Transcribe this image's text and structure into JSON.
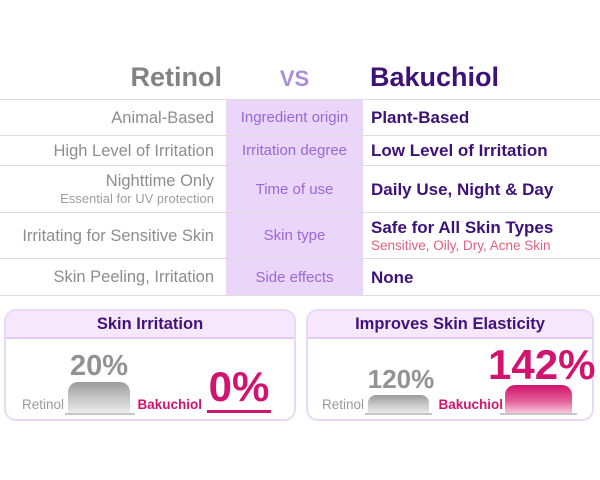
{
  "colors": {
    "accent_purple": "#3d1278",
    "mid_purple": "#9b67d6",
    "lavender_band": "#e9d6f8",
    "card_header_bg": "#f6e7fc",
    "pink": "#d0146f",
    "rose_subtext": "#e0607f",
    "gray_text": "#8d8d8d"
  },
  "header": {
    "left": "Retinol",
    "vs": "VS",
    "right": "Bakuchiol"
  },
  "table": {
    "rows": [
      {
        "left": "Animal-Based",
        "label": "Ingredient origin",
        "right": "Plant-Based"
      },
      {
        "left": "High Level of Irritation",
        "label": "Irritation degree",
        "right": "Low Level of Irritation"
      },
      {
        "left": "Nighttime Only",
        "left_sub": "Essential for UV protection",
        "label": "Time of use",
        "right": "Daily Use, Night & Day"
      },
      {
        "left": "Irritating for Sensitive Skin",
        "label": "Skin type",
        "right": "Safe for All Skin Types",
        "right_sub": "Sensitive, Oily, Dry, Acne Skin"
      },
      {
        "left": "Skin Peeling, Irritation",
        "label": "Side effects",
        "right": "None"
      }
    ]
  },
  "charts": {
    "skin_irritation": {
      "title": "Skin Irritation",
      "retinol_label": "Retinol",
      "retinol_value": "20%",
      "bakuchiol_label": "Bakuchiol",
      "bakuchiol_value": "0%"
    },
    "skin_elasticity": {
      "title": "Improves Skin Elasticity",
      "retinol_label": "Retinol",
      "retinol_value": "120%",
      "bakuchiol_label": "Bakuchiol",
      "bakuchiol_value": "142%"
    }
  },
  "chart_data": [
    {
      "type": "bar",
      "title": "Skin Irritation",
      "categories": [
        "Retinol",
        "Bakuchiol"
      ],
      "values": [
        20,
        0
      ],
      "unit": "%",
      "value_labels": [
        "20%",
        "0%"
      ],
      "series_colors": [
        "#9c9c9c",
        "#d0146f"
      ],
      "ylim": [
        0,
        150
      ],
      "grid": false
    },
    {
      "type": "bar",
      "title": "Improves Skin Elasticity",
      "categories": [
        "Retinol",
        "Bakuchiol"
      ],
      "values": [
        120,
        142
      ],
      "unit": "%",
      "value_labels": [
        "120%",
        "142%"
      ],
      "series_colors": [
        "#9c9c9c",
        "#d0146f"
      ],
      "ylim": [
        0,
        150
      ],
      "grid": false
    }
  ]
}
